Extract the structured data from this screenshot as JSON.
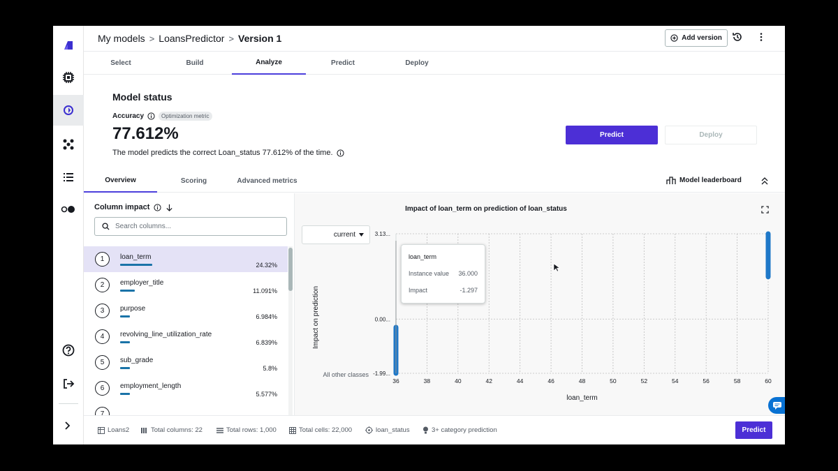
{
  "breadcrumb": [
    "My models",
    "LoansPredictor",
    "Version 1"
  ],
  "header": {
    "add_version": "Add version"
  },
  "steps": [
    "Select",
    "Build",
    "Analyze",
    "Predict",
    "Deploy"
  ],
  "active_step": "Analyze",
  "model_status": {
    "title": "Model status",
    "accuracy_label": "Accuracy",
    "badge": "Optimization metric",
    "accuracy_value": "77.612%",
    "description": "The model predicts the correct Loan_status 77.612% of the time."
  },
  "buttons": {
    "predict": "Predict",
    "deploy": "Deploy"
  },
  "subtabs": [
    "Overview",
    "Scoring",
    "Advanced metrics"
  ],
  "leaderboard": "Model leaderboard",
  "column_impact": {
    "title": "Column impact",
    "search_placeholder": "Search columns...",
    "items": [
      {
        "rank": "1",
        "name": "loan_term",
        "pct": "24.32%",
        "fraction": 0.2432
      },
      {
        "rank": "2",
        "name": "employer_title",
        "pct": "11.091%",
        "fraction": 0.11091
      },
      {
        "rank": "3",
        "name": "purpose",
        "pct": "6.984%",
        "fraction": 0.06984
      },
      {
        "rank": "4",
        "name": "revolving_line_utilization_rate",
        "pct": "6.839%",
        "fraction": 0.06839
      },
      {
        "rank": "5",
        "name": "sub_grade",
        "pct": "5.8%",
        "fraction": 0.058
      },
      {
        "rank": "6",
        "name": "employment_length",
        "pct": "5.577%",
        "fraction": 0.05577
      },
      {
        "rank": "7",
        "name": "",
        "pct": "",
        "fraction": 0
      }
    ]
  },
  "chart": {
    "title": "Impact of loan_term on prediction of loan_status",
    "select_value": "current",
    "tooltip": {
      "title": "loan_term",
      "instance_label": "Instance value",
      "instance_value": "36.000",
      "impact_label": "Impact",
      "impact_value": "-1.297"
    }
  },
  "chart_data": {
    "type": "scatter",
    "title": "Impact of loan_term on prediction of loan_status",
    "xlabel": "loan_term",
    "ylabel": "Impact on prediction",
    "xlim": [
      36,
      60
    ],
    "ylim": [
      -1.99,
      3.13
    ],
    "x_ticks": [
      "36",
      "38",
      "40",
      "42",
      "44",
      "46",
      "48",
      "50",
      "52",
      "54",
      "56",
      "58",
      "60"
    ],
    "y_ticks": [
      "3.13...",
      "0.00...",
      "-1.99..."
    ],
    "y_category_label": "All other classes",
    "series": [
      {
        "x": 36,
        "y_from": -1.99,
        "y_to": -0.3
      },
      {
        "x": 60,
        "y_from": 1.55,
        "y_to": 3.13
      }
    ],
    "accent_color": "#1f78c8"
  },
  "footer": {
    "dataset": "Loans2",
    "total_columns": "Total columns: 22",
    "total_rows": "Total rows: 1,000",
    "total_cells": "Total cells: 22,000",
    "target": "loan_status",
    "prediction_type": "3+ category prediction"
  }
}
